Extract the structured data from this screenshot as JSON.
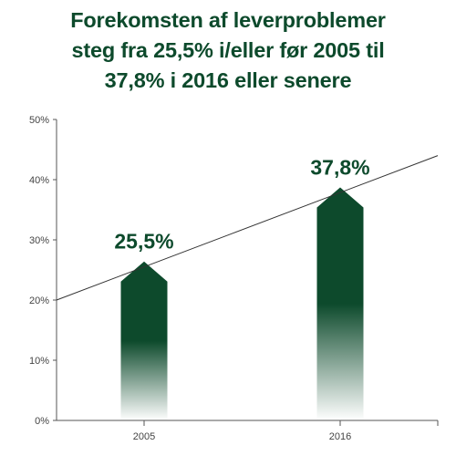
{
  "chart_data": {
    "type": "bar",
    "title_lines": [
      "Forekomsten af leverproblemer",
      "steg fra 25,5% i/eller før 2005 til",
      "37,8% i 2016 eller senere"
    ],
    "categories": [
      "2005",
      "2016"
    ],
    "values": [
      25.5,
      37.8
    ],
    "value_labels": [
      "25,5%",
      "37,8%"
    ],
    "yticks": [
      "0%",
      "10%",
      "20%",
      "30%",
      "40%",
      "50%"
    ],
    "ylim": [
      0,
      50
    ],
    "trendline": {
      "start": 20,
      "end": 44
    },
    "grid": false,
    "legend": "none",
    "colors": {
      "bar": "#0d4a2c",
      "text": "#0d4a2c",
      "axis": "#555555",
      "trend": "#333333"
    }
  }
}
